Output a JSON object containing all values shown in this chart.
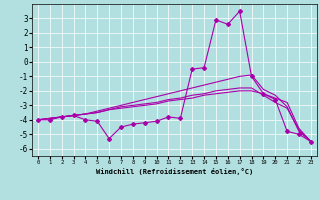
{
  "xlabel": "Windchill (Refroidissement éolien,°C)",
  "bg_color": "#b2e0e0",
  "line_color": "#aa00aa",
  "grid_color": "#ffffff",
  "x_ticks": [
    0,
    1,
    2,
    3,
    4,
    5,
    6,
    7,
    8,
    9,
    10,
    11,
    12,
    13,
    14,
    15,
    16,
    17,
    18,
    19,
    20,
    21,
    22,
    23
  ],
  "ylim": [
    -6.5,
    4.0
  ],
  "xlim": [
    -0.5,
    23.5
  ],
  "yticks": [
    -6,
    -5,
    -4,
    -3,
    -2,
    -1,
    0,
    1,
    2,
    3
  ],
  "line1_x": [
    0,
    1,
    2,
    3,
    4,
    5,
    6,
    7,
    8,
    9,
    10,
    11,
    12,
    13,
    14,
    15,
    16,
    17,
    18,
    19,
    20,
    21,
    22,
    23
  ],
  "line1_y": [
    -4.0,
    -4.0,
    -3.8,
    -3.7,
    -4.0,
    -4.1,
    -5.3,
    -4.5,
    -4.3,
    -4.2,
    -4.1,
    -3.8,
    -3.9,
    -0.5,
    -0.4,
    2.9,
    2.6,
    3.5,
    -1.0,
    -2.2,
    -2.6,
    -4.8,
    -5.0,
    -5.5
  ],
  "line2_x": [
    0,
    1,
    2,
    3,
    4,
    5,
    6,
    7,
    8,
    9,
    10,
    11,
    12,
    13,
    14,
    15,
    16,
    17,
    18,
    19,
    20,
    21,
    22,
    23
  ],
  "line2_y": [
    -4.0,
    -3.9,
    -3.8,
    -3.7,
    -3.6,
    -3.4,
    -3.2,
    -3.0,
    -2.8,
    -2.6,
    -2.4,
    -2.2,
    -2.0,
    -1.8,
    -1.6,
    -1.4,
    -1.2,
    -1.0,
    -0.9,
    -1.9,
    -2.3,
    -3.1,
    -4.8,
    -5.5
  ],
  "line3_x": [
    0,
    1,
    2,
    3,
    4,
    5,
    6,
    7,
    8,
    9,
    10,
    11,
    12,
    13,
    14,
    15,
    16,
    17,
    18,
    19,
    20,
    21,
    22,
    23
  ],
  "line3_y": [
    -4.0,
    -3.9,
    -3.8,
    -3.7,
    -3.6,
    -3.5,
    -3.3,
    -3.1,
    -3.0,
    -2.9,
    -2.8,
    -2.6,
    -2.5,
    -2.3,
    -2.2,
    -2.0,
    -1.9,
    -1.8,
    -1.8,
    -2.3,
    -2.8,
    -3.2,
    -4.7,
    -5.5
  ],
  "line4_x": [
    0,
    1,
    2,
    3,
    4,
    5,
    6,
    7,
    8,
    9,
    10,
    11,
    12,
    13,
    14,
    15,
    16,
    17,
    18,
    19,
    20,
    21,
    22,
    23
  ],
  "line4_y": [
    -4.0,
    -3.9,
    -3.8,
    -3.7,
    -3.6,
    -3.5,
    -3.3,
    -3.2,
    -3.1,
    -3.0,
    -2.9,
    -2.7,
    -2.6,
    -2.5,
    -2.3,
    -2.2,
    -2.1,
    -2.0,
    -2.0,
    -2.2,
    -2.5,
    -2.8,
    -4.6,
    -5.5
  ]
}
